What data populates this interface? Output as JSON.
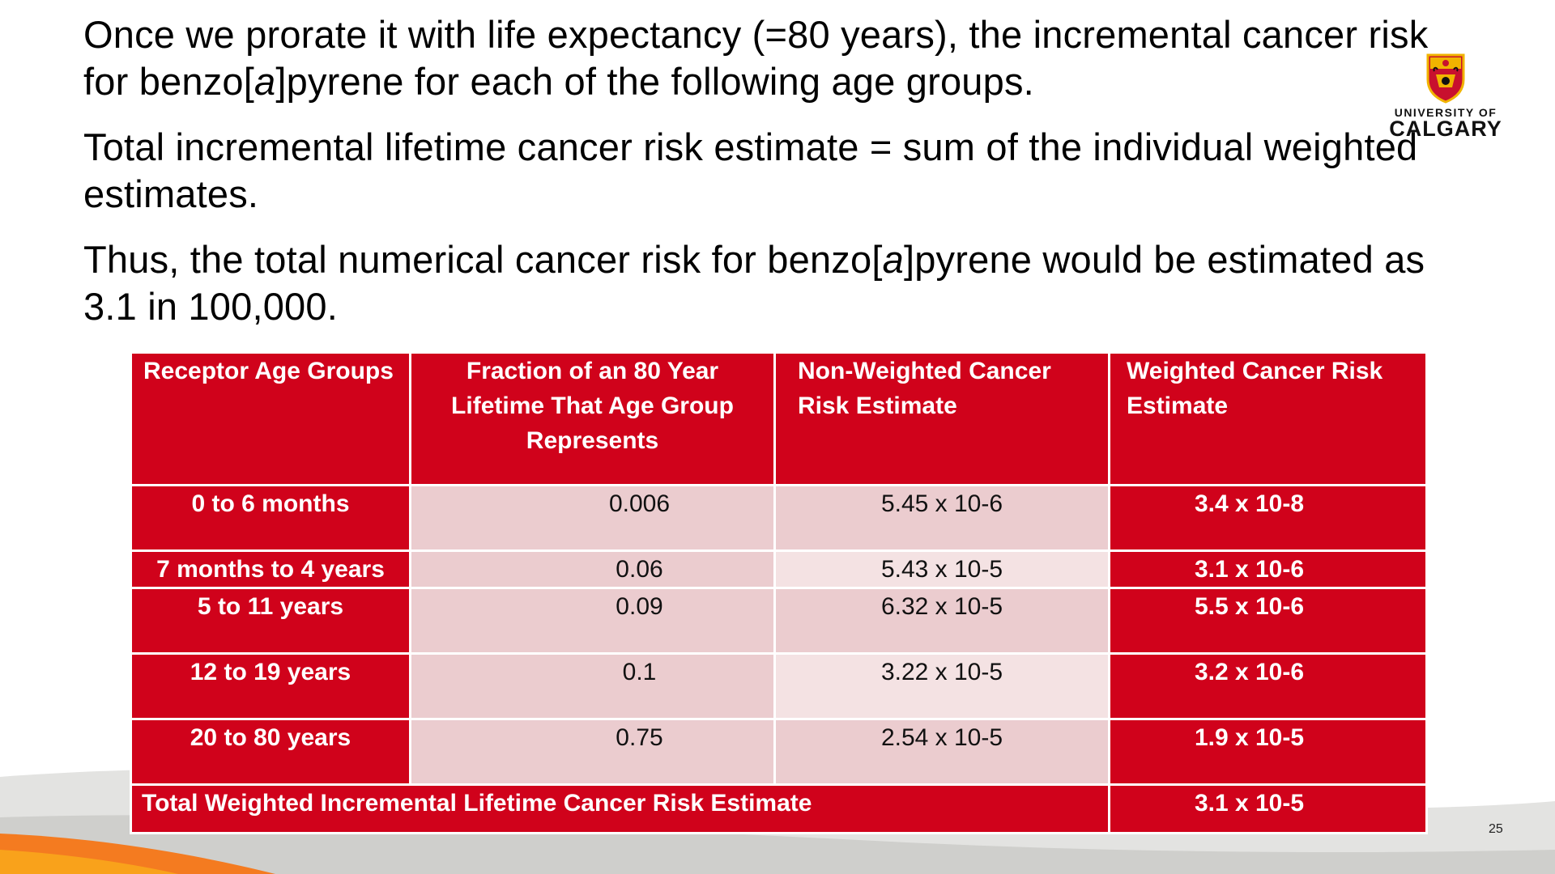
{
  "paragraphs": [
    {
      "pre": "Once we prorate it with life expectancy (=80 years), the incremental cancer risk for benzo[",
      "italic": "a",
      "post": "]pyrene for each of the following age groups."
    },
    {
      "pre": "Total incremental lifetime cancer risk estimate = sum of the individual weighted estimates.",
      "italic": "",
      "post": ""
    },
    {
      "pre": "Thus, the total numerical cancer risk for benzo[",
      "italic": "a",
      "post": "]pyrene would be estimated as 3.1 in 100,000."
    }
  ],
  "logo": {
    "line1": "UNIVERSITY OF",
    "line2": "CALGARY"
  },
  "table": {
    "headers": [
      "Receptor Age Groups",
      "Fraction of an 80 Year Lifetime That Age Group Represents",
      "Non-Weighted Cancer Risk Estimate",
      "Weighted Cancer Risk Estimate"
    ],
    "rows": [
      {
        "age": "0 to 6 months",
        "fraction": "0.006",
        "nonweighted": "5.45 x 10-6",
        "weighted": "3.4 x 10-8"
      },
      {
        "age": "7 months to 4 years",
        "fraction": "0.06",
        "nonweighted": "5.43 x 10-5",
        "weighted": "3.1 x 10-6"
      },
      {
        "age": "5 to 11 years",
        "fraction": "0.09",
        "nonweighted": "6.32 x 10-5",
        "weighted": "5.5 x 10-6"
      },
      {
        "age": "12 to 19 years",
        "fraction": "0.1",
        "nonweighted": "3.22 x 10-5",
        "weighted": "3.2 x 10-6"
      },
      {
        "age": "20 to 80 years",
        "fraction": "0.75",
        "nonweighted": "2.54 x 10-5",
        "weighted": "1.9 x 10-5"
      }
    ],
    "total_label": "Total Weighted Incremental Lifetime Cancer Risk Estimate",
    "total_value": "3.1 x 10-5"
  },
  "page_number": "25",
  "colors": {
    "table_red": "#d0021b",
    "cell_dark": "#ebcccf",
    "cell_light": "#f4e2e3",
    "swoosh_orange": "#f47b20"
  }
}
